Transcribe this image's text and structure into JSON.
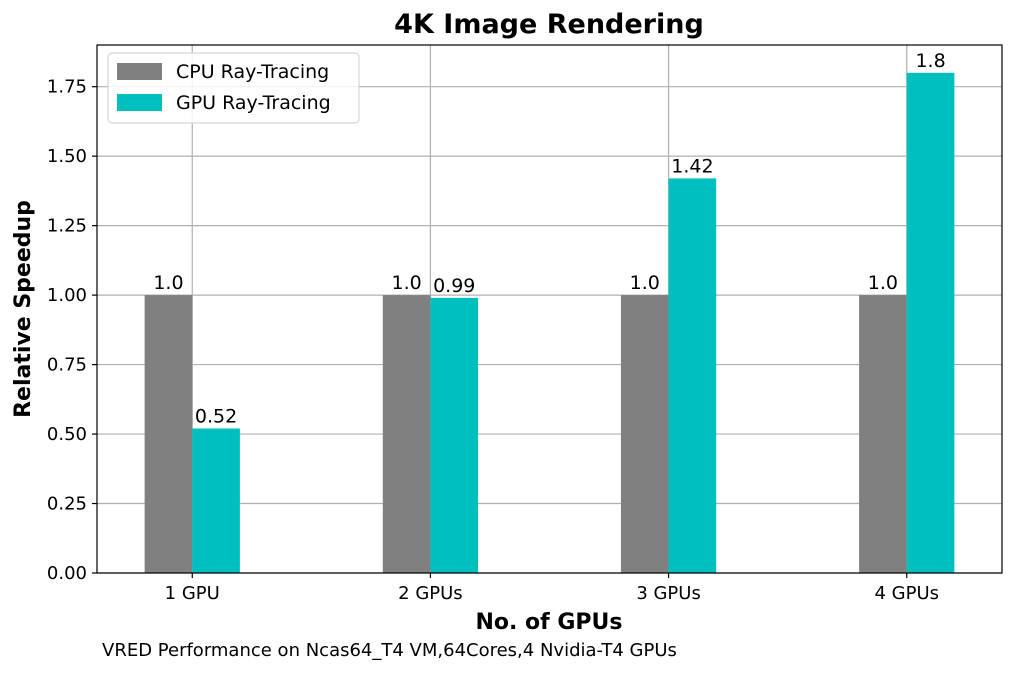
{
  "chart_data": {
    "type": "bar",
    "title": "4K Image Rendering",
    "xlabel": "No. of GPUs",
    "ylabel": "Relative Speedup",
    "caption": "VRED Performance on Ncas64_T4 VM,64Cores,4 Nvidia-T4 GPUs",
    "categories": [
      "1 GPU",
      "2 GPUs",
      "3 GPUs",
      "4 GPUs"
    ],
    "series": [
      {
        "name": "CPU Ray-Tracing",
        "color": "#808080",
        "values": [
          1.0,
          1.0,
          1.0,
          1.0
        ],
        "labels": [
          "1.0",
          "1.0",
          "1.0",
          "1.0"
        ]
      },
      {
        "name": "GPU Ray-Tracing",
        "color": "#00bfbf",
        "values": [
          0.52,
          0.99,
          1.42,
          1.8
        ],
        "labels": [
          "0.52",
          "0.99",
          "1.42",
          "1.8"
        ]
      }
    ],
    "ylim": [
      0,
      1.9
    ],
    "yticks": [
      "0.00",
      "0.25",
      "0.50",
      "0.75",
      "1.00",
      "1.25",
      "1.50",
      "1.75"
    ],
    "grid": true,
    "legend_position": "top-left"
  }
}
